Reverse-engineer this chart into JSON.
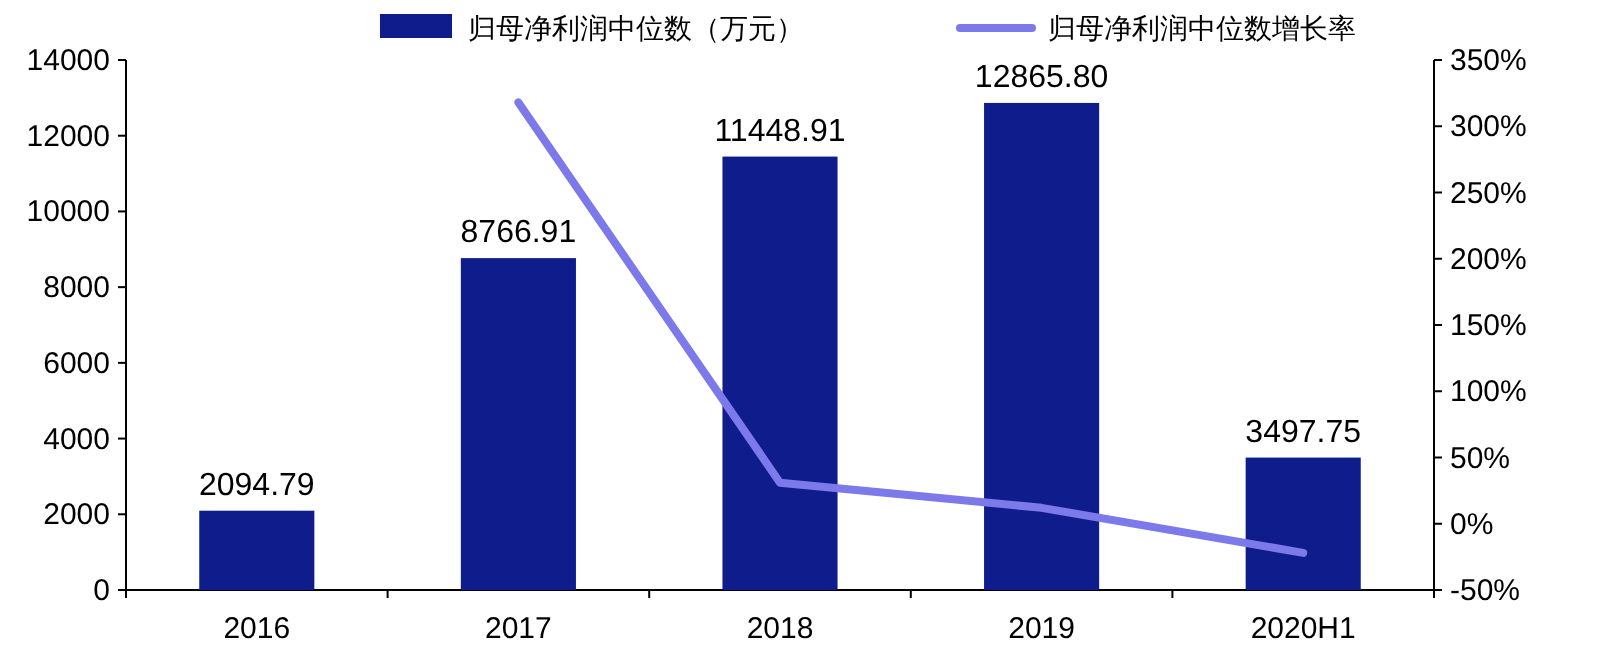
{
  "chart_data": {
    "type": "bar",
    "categories": [
      "2016",
      "2017",
      "2018",
      "2019",
      "2020H1"
    ],
    "series": [
      {
        "name": "归母净利润中位数（万元）",
        "color": "#0f1d8c",
        "values": [
          2094.79,
          8766.91,
          11448.91,
          12865.8,
          3497.75
        ],
        "value_labels": [
          "2094.79",
          "8766.91",
          "11448.91",
          "12865.80",
          "3497.75"
        ]
      },
      {
        "name": "归母净利润中位数增长率",
        "type": "line",
        "axis": "y2",
        "color": "#7c79ea",
        "values": [
          null,
          318,
          31,
          12,
          -22
        ]
      }
    ],
    "ylim": [
      0,
      14000
    ],
    "yticks": [
      0,
      2000,
      4000,
      6000,
      8000,
      10000,
      12000,
      14000
    ],
    "y2lim": [
      -50,
      350
    ],
    "y2ticks": [
      {
        "value": -50,
        "label": "-50%"
      },
      {
        "value": 0,
        "label": "0%"
      },
      {
        "value": 50,
        "label": "50%"
      },
      {
        "value": 100,
        "label": "100%"
      },
      {
        "value": 150,
        "label": "150%"
      },
      {
        "value": 200,
        "label": "200%"
      },
      {
        "value": 250,
        "label": "250%"
      },
      {
        "value": 300,
        "label": "300%"
      },
      {
        "value": 350,
        "label": "350%"
      }
    ],
    "legend": "top",
    "grid": false,
    "marker": "none",
    "line_style": "solid"
  }
}
